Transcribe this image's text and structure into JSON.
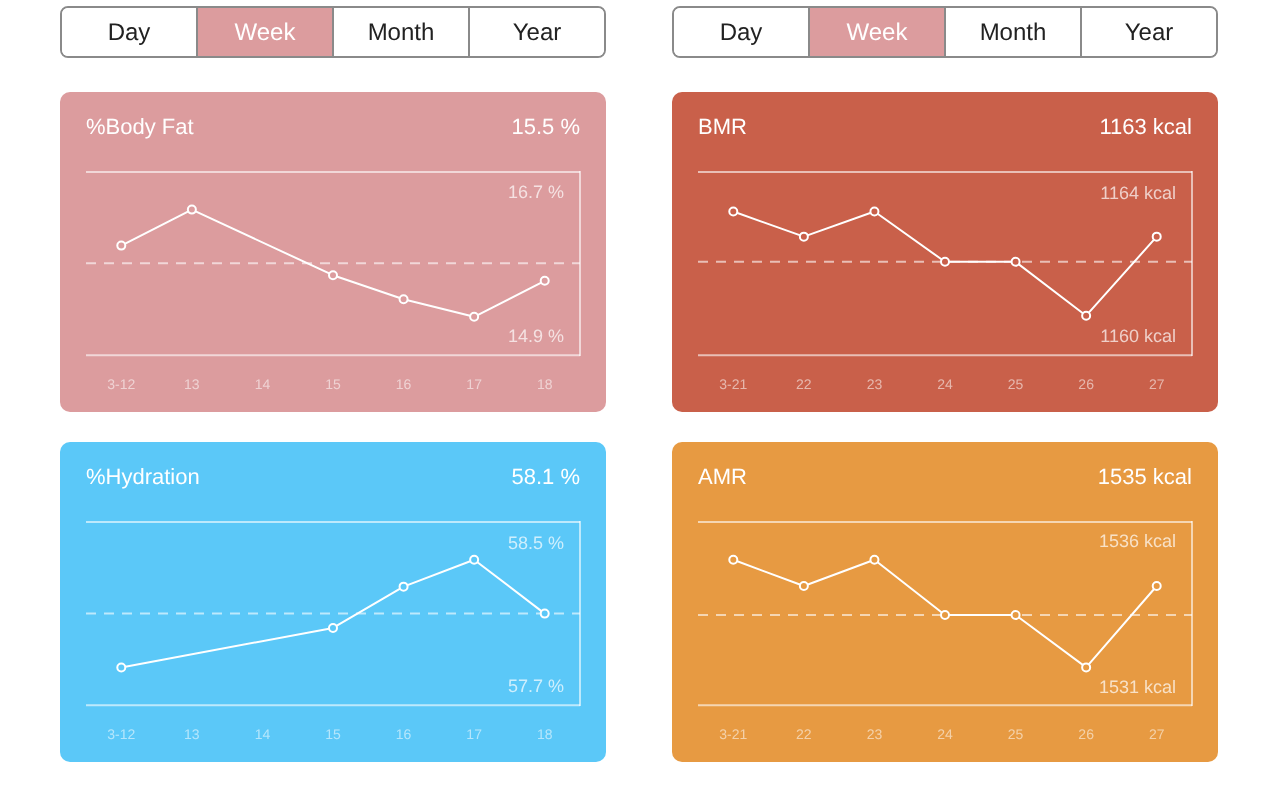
{
  "chart_data": [
    {
      "type": "other",
      "annotations": [
        "Day",
        "Week",
        "Month",
        "Year"
      ]
    },
    {
      "type": "other",
      "annotations": [
        "Day",
        "Week",
        "Month",
        "Year"
      ]
    },
    {
      "type": "line",
      "title": "%Body Fat",
      "annotations": [
        "15.5 %"
      ],
      "categories": [
        "3-12",
        "13",
        "14",
        "15",
        "16",
        "17",
        "18"
      ],
      "series": [
        {
          "color": "#ffffff",
          "values": [
            16.04,
            16.49,
            null,
            15.67,
            15.37,
            15.15,
            15.6
          ]
        }
      ],
      "ylim": [
        14.67,
        16.96
      ],
      "yticks": [
        {
          "value": 14.9,
          "label": "14.9 %"
        },
        {
          "value": 16.7,
          "label": "16.7 %"
        }
      ],
      "ref_lines": [
        {
          "axis": "y",
          "value": 15.82,
          "line_style": "dashed"
        }
      ],
      "marker": "circle",
      "grid": false,
      "legend": false
    },
    {
      "type": "line",
      "title": "BMR",
      "annotations": [
        "1163 kcal"
      ],
      "categories": [
        "3-21",
        "22",
        "23",
        "24",
        "25",
        "26",
        "27"
      ],
      "series": [
        {
          "color": "#ffffff",
          "values": [
            1163.5,
            1162.8,
            1163.5,
            1162.1,
            1162.1,
            1160.6,
            1162.8
          ]
        }
      ],
      "ylim": [
        1159.5,
        1164.6
      ],
      "yticks": [
        {
          "value": 1160,
          "label": "1160 kcal"
        },
        {
          "value": 1164,
          "label": "1164 kcal"
        }
      ],
      "ref_lines": [
        {
          "axis": "y",
          "value": 1162.1,
          "line_style": "dashed"
        }
      ],
      "marker": "circle",
      "grid": false,
      "legend": false
    },
    {
      "type": "line",
      "title": "%Hydration",
      "annotations": [
        "58.1 %"
      ],
      "categories": [
        "3-12",
        "13",
        "14",
        "15",
        "16",
        "17",
        "18"
      ],
      "series": [
        {
          "color": "#ffffff",
          "values": [
            57.81,
            null,
            null,
            58.03,
            58.26,
            58.41,
            58.11
          ]
        }
      ],
      "ylim": [
        57.6,
        58.62
      ],
      "yticks": [
        {
          "value": 57.7,
          "label": "57.7 %"
        },
        {
          "value": 58.5,
          "label": "58.5 %"
        }
      ],
      "ref_lines": [
        {
          "axis": "y",
          "value": 58.11,
          "line_style": "dashed"
        }
      ],
      "marker": "circle",
      "grid": false,
      "legend": false
    },
    {
      "type": "line",
      "title": "AMR",
      "annotations": [
        "1535 kcal"
      ],
      "categories": [
        "3-21",
        "22",
        "23",
        "24",
        "25",
        "26",
        "27"
      ],
      "series": [
        {
          "color": "#ffffff",
          "values": [
            1535.4,
            1534.5,
            1535.4,
            1533.5,
            1533.5,
            1531.7,
            1534.5
          ]
        }
      ],
      "ylim": [
        1530.4,
        1536.7
      ],
      "yticks": [
        {
          "value": 1531,
          "label": "1531 kcal"
        },
        {
          "value": 1536,
          "label": "1536 kcal"
        }
      ],
      "ref_lines": [
        {
          "axis": "y",
          "value": 1533.5,
          "line_style": "dashed"
        }
      ],
      "marker": "circle",
      "grid": false,
      "legend": false
    }
  ]
}
